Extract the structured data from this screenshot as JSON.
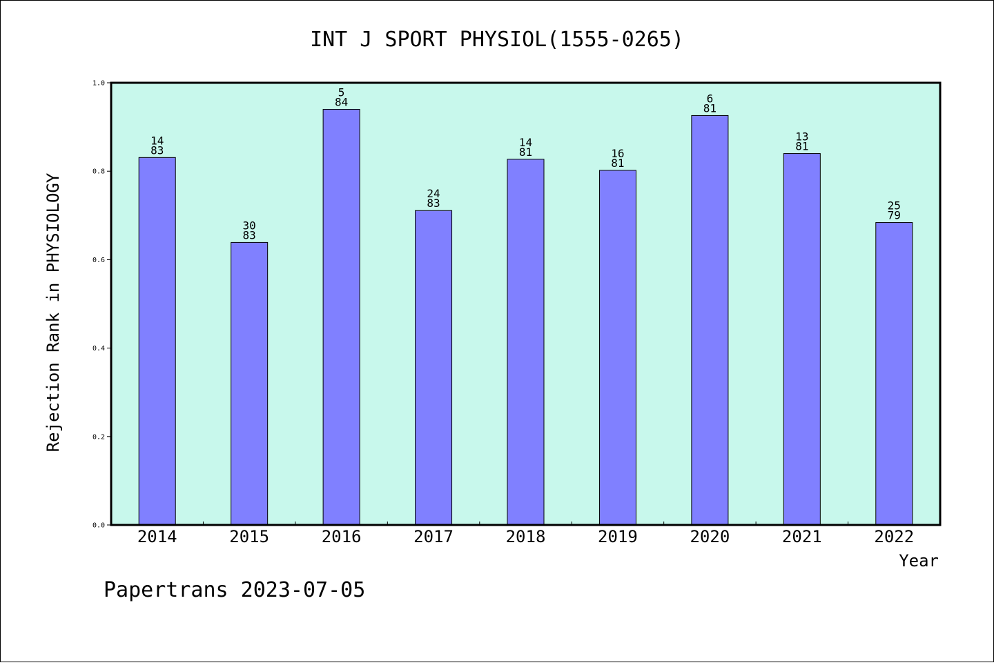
{
  "chart_data": {
    "type": "bar",
    "title": "INT J SPORT PHYSIOL(1555-0265)",
    "xlabel": "Year",
    "ylabel": "Rejection Rank in PHYSIOLOGY",
    "ylim": [
      0,
      1.0
    ],
    "yticks": [
      "0.0",
      "0.2",
      "0.4",
      "0.6",
      "0.8",
      "1.0"
    ],
    "categories": [
      "2014",
      "2015",
      "2016",
      "2017",
      "2018",
      "2019",
      "2020",
      "2021",
      "2022"
    ],
    "values": [
      0.831,
      0.639,
      0.94,
      0.711,
      0.827,
      0.802,
      0.926,
      0.84,
      0.684
    ],
    "ranks": [
      "14",
      "30",
      "5",
      "24",
      "14",
      "16",
      "6",
      "13",
      "25"
    ],
    "totals": [
      "83",
      "83",
      "84",
      "83",
      "81",
      "81",
      "81",
      "81",
      "79"
    ],
    "grid": false,
    "legend": "none"
  },
  "footer": "Papertrans 2023-07-05",
  "colors": {
    "plot_background": "#c8f8ec",
    "bar_fill": "#8080ff",
    "bar_stroke": "#000000",
    "axis": "#000000"
  }
}
